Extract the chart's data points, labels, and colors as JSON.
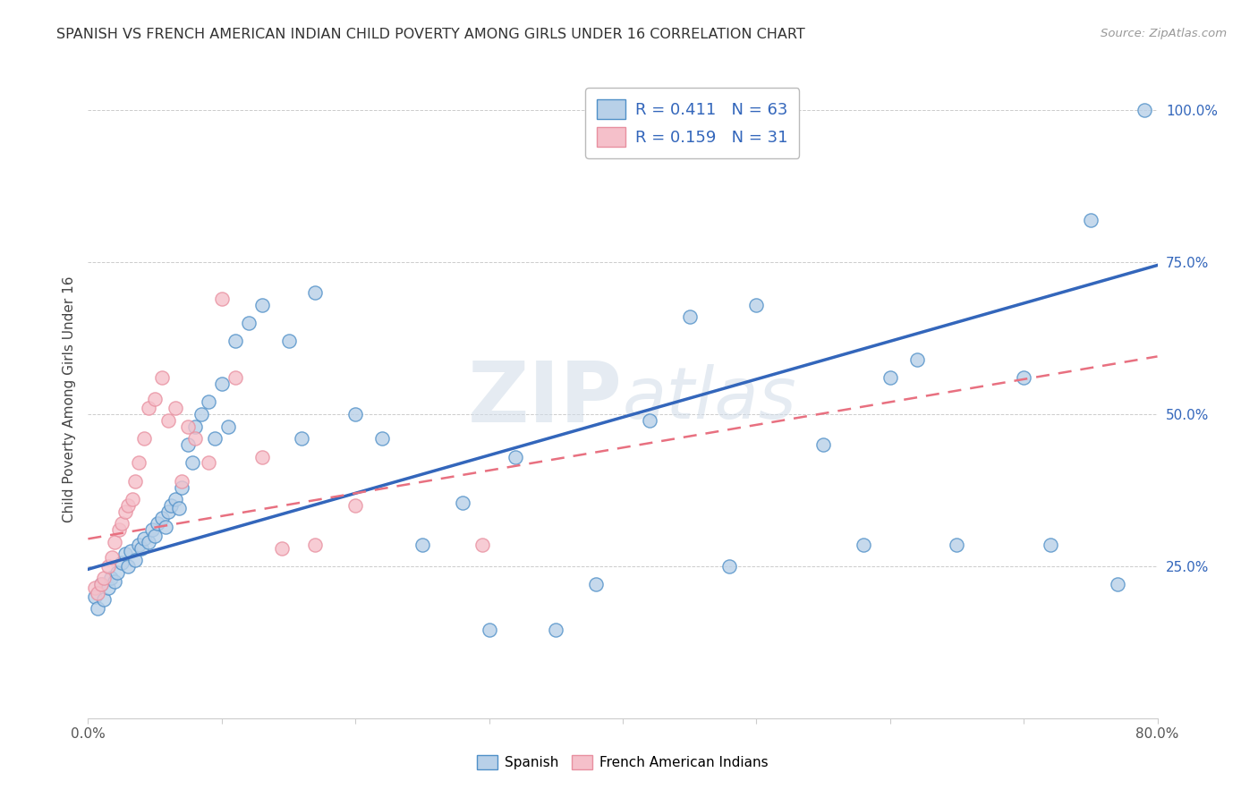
{
  "title": "SPANISH VS FRENCH AMERICAN INDIAN CHILD POVERTY AMONG GIRLS UNDER 16 CORRELATION CHART",
  "source": "Source: ZipAtlas.com",
  "ylabel": "Child Poverty Among Girls Under 16",
  "xlim": [
    0.0,
    0.8
  ],
  "ylim": [
    0.0,
    1.05
  ],
  "xticks": [
    0.0,
    0.1,
    0.2,
    0.3,
    0.4,
    0.5,
    0.6,
    0.7,
    0.8
  ],
  "xticklabels": [
    "0.0%",
    "",
    "",
    "",
    "",
    "",
    "",
    "",
    "80.0%"
  ],
  "ytick_positions": [
    0.25,
    0.5,
    0.75,
    1.0
  ],
  "yticklabels": [
    "25.0%",
    "50.0%",
    "75.0%",
    "100.0%"
  ],
  "blue_R": "0.411",
  "blue_N": "63",
  "pink_R": "0.159",
  "pink_N": "31",
  "blue_fill": "#b8d0e8",
  "blue_edge": "#5090c8",
  "blue_line": "#3366bb",
  "pink_fill": "#f5c0ca",
  "pink_edge": "#e890a0",
  "pink_line": "#e87080",
  "blue_line_y0": 0.245,
  "blue_line_y1": 0.745,
  "pink_line_y0": 0.295,
  "pink_line_y1": 0.595,
  "watermark_color": "#d0dce8",
  "watermark_alpha": 0.55,
  "blue_scatter_x": [
    0.005,
    0.007,
    0.01,
    0.012,
    0.015,
    0.017,
    0.02,
    0.022,
    0.025,
    0.028,
    0.03,
    0.032,
    0.035,
    0.038,
    0.04,
    0.042,
    0.045,
    0.048,
    0.05,
    0.052,
    0.055,
    0.058,
    0.06,
    0.062,
    0.065,
    0.068,
    0.07,
    0.075,
    0.078,
    0.08,
    0.085,
    0.09,
    0.095,
    0.1,
    0.105,
    0.11,
    0.12,
    0.13,
    0.15,
    0.16,
    0.17,
    0.2,
    0.22,
    0.25,
    0.28,
    0.3,
    0.32,
    0.35,
    0.38,
    0.42,
    0.45,
    0.48,
    0.5,
    0.55,
    0.58,
    0.6,
    0.62,
    0.65,
    0.7,
    0.72,
    0.75,
    0.77,
    0.79
  ],
  "blue_scatter_y": [
    0.2,
    0.18,
    0.22,
    0.195,
    0.215,
    0.23,
    0.225,
    0.24,
    0.255,
    0.27,
    0.25,
    0.275,
    0.26,
    0.285,
    0.28,
    0.295,
    0.29,
    0.31,
    0.3,
    0.32,
    0.33,
    0.315,
    0.34,
    0.35,
    0.36,
    0.345,
    0.38,
    0.45,
    0.42,
    0.48,
    0.5,
    0.52,
    0.46,
    0.55,
    0.48,
    0.62,
    0.65,
    0.68,
    0.62,
    0.46,
    0.7,
    0.5,
    0.46,
    0.285,
    0.355,
    0.145,
    0.43,
    0.145,
    0.22,
    0.49,
    0.66,
    0.25,
    0.68,
    0.45,
    0.285,
    0.56,
    0.59,
    0.285,
    0.56,
    0.285,
    0.82,
    0.22,
    1.0
  ],
  "pink_scatter_x": [
    0.005,
    0.007,
    0.01,
    0.012,
    0.015,
    0.018,
    0.02,
    0.023,
    0.025,
    0.028,
    0.03,
    0.033,
    0.035,
    0.038,
    0.042,
    0.045,
    0.05,
    0.055,
    0.06,
    0.065,
    0.07,
    0.075,
    0.08,
    0.09,
    0.1,
    0.11,
    0.13,
    0.145,
    0.17,
    0.2,
    0.295
  ],
  "pink_scatter_y": [
    0.215,
    0.205,
    0.22,
    0.23,
    0.25,
    0.265,
    0.29,
    0.31,
    0.32,
    0.34,
    0.35,
    0.36,
    0.39,
    0.42,
    0.46,
    0.51,
    0.525,
    0.56,
    0.49,
    0.51,
    0.39,
    0.48,
    0.46,
    0.42,
    0.69,
    0.56,
    0.43,
    0.28,
    0.285,
    0.35,
    0.285
  ],
  "legend_label_blue": "Spanish",
  "legend_label_pink": "French American Indians"
}
